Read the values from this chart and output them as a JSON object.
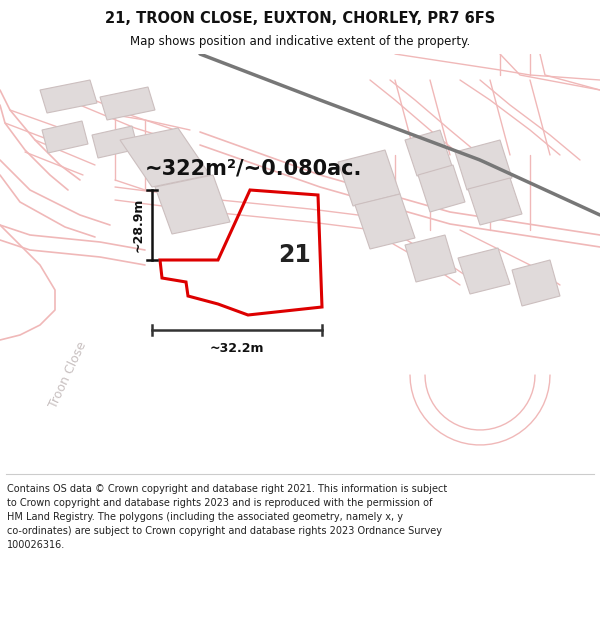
{
  "title": "21, TROON CLOSE, EUXTON, CHORLEY, PR7 6FS",
  "subtitle": "Map shows position and indicative extent of the property.",
  "area_text": "~322m²/~0.080ac.",
  "dim_width": "~32.2m",
  "dim_height": "~28.9m",
  "label": "21",
  "footer": "Contains OS data © Crown copyright and database right 2021. This information is subject to Crown copyright and database rights 2023 and is reproduced with the permission of HM Land Registry. The polygons (including the associated geometry, namely x, y co-ordinates) are subject to Crown copyright and database rights 2023 Ordnance Survey 100026316.",
  "map_bg": "#f9f7f7",
  "road_line_color": "#f0b8b8",
  "road_fill_color": "#f5dcdc",
  "dark_road_color": "#888888",
  "building_color": "#e0dada",
  "building_edge": "#ccbfbf",
  "property_color": "#dd0000",
  "text_color": "#111111",
  "footer_sep": "#cccccc",
  "troon_text": "#c8c0c0",
  "title_size": 10.5,
  "subtitle_size": 8.5,
  "area_fontsize": 15,
  "label_fontsize": 17,
  "dim_fontsize": 9,
  "footer_fontsize": 7
}
